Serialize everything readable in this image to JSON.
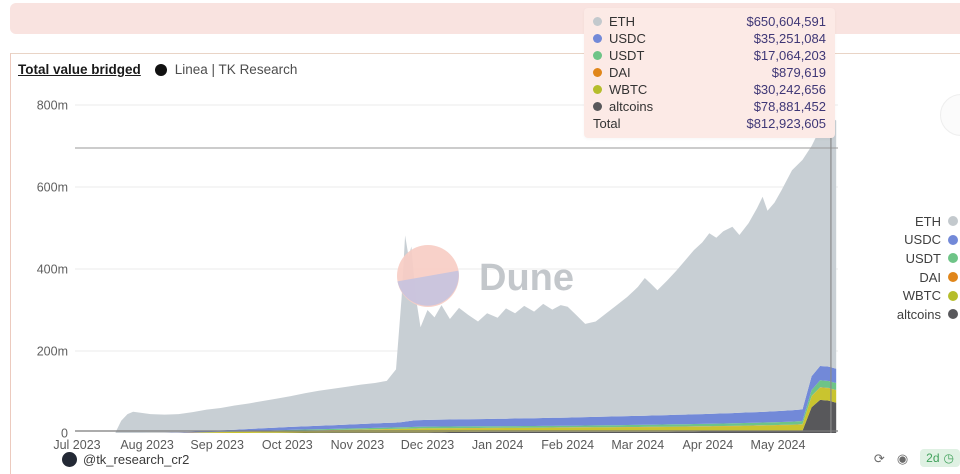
{
  "card": {
    "title": "Total value bridged",
    "subtitle": "Linea | TK Research"
  },
  "tooltip": {
    "rows": [
      {
        "label": "ETH",
        "value": "$650,604,591",
        "color": "#c3c9cd"
      },
      {
        "label": "USDC",
        "value": "$35,251,084",
        "color": "#7289d8"
      },
      {
        "label": "USDT",
        "value": "$17,064,203",
        "color": "#6ec487"
      },
      {
        "label": "DAI",
        "value": "$879,619",
        "color": "#e0861a"
      },
      {
        "label": "WBTC",
        "value": "$30,242,656",
        "color": "#b5bd2b"
      },
      {
        "label": "altcoins",
        "value": "$78,881,452",
        "color": "#58585b"
      }
    ],
    "total_label": "Total",
    "total_value": "$812,923,605"
  },
  "legend": {
    "items": [
      {
        "label": "ETH",
        "color": "#c3c9cd"
      },
      {
        "label": "USDC",
        "color": "#7289d8"
      },
      {
        "label": "USDT",
        "color": "#6ec487"
      },
      {
        "label": "DAI",
        "color": "#e0861a"
      },
      {
        "label": "WBTC",
        "color": "#b5bd2b"
      },
      {
        "label": "altcoins",
        "color": "#58585b"
      }
    ]
  },
  "watermark": {
    "label": "Dune"
  },
  "footer": {
    "handle": "@tk_research_cr2"
  },
  "actions": {
    "age_badge": "2d",
    "clock_glyph": "◷",
    "fork_glyph": "⟳",
    "embed_glyph": "◉"
  },
  "chart_data": {
    "type": "area",
    "stacked": true,
    "title": "Total value bridged (Linea | TK Research)",
    "x_tick_labels": [
      "Jul 2023",
      "Aug 2023",
      "Sep 2023",
      "Oct 2023",
      "Nov 2023",
      "Dec 2023",
      "Jan 2024",
      "Feb 2024",
      "Mar 2024",
      "Apr 2024",
      "May 2024"
    ],
    "y_tick_labels": [
      "0",
      "200m",
      "400m",
      "600m",
      "800m"
    ],
    "y_tick_values": [
      0,
      200,
      400,
      600,
      800
    ],
    "y_unit": "USD millions",
    "ylim": [
      0,
      830
    ],
    "legend_position": "right",
    "grid": "horizontal",
    "stack_order_bottom_up": [
      "altcoins",
      "WBTC",
      "DAI",
      "USDT",
      "USDC",
      "ETH"
    ],
    "colors": {
      "ETH": "#c8cfd4",
      "USDC": "#7289d8",
      "USDT": "#6ec487",
      "DAI": "#e0861a",
      "WBTC": "#c9c42f",
      "altcoins": "#58585b"
    },
    "x_months_since_jul_2023": [
      0.55,
      0.63,
      0.72,
      0.8,
      0.92,
      1.05,
      1.25,
      1.45,
      1.65,
      1.85,
      2.05,
      2.25,
      2.45,
      2.65,
      2.85,
      3.05,
      3.25,
      3.45,
      3.65,
      3.85,
      4.05,
      4.25,
      4.42,
      4.55,
      4.63,
      4.68,
      4.73,
      4.77,
      4.83,
      4.9,
      5.0,
      5.1,
      5.2,
      5.32,
      5.45,
      5.58,
      5.72,
      5.85,
      6.0,
      6.12,
      6.25,
      6.38,
      6.52,
      6.65,
      6.78,
      6.9,
      7.0,
      7.12,
      7.25,
      7.4,
      7.55,
      7.7,
      7.85,
      8.0,
      8.1,
      8.2,
      8.28,
      8.42,
      8.55,
      8.68,
      8.8,
      8.92,
      9.02,
      9.12,
      9.22,
      9.35,
      9.45,
      9.58,
      9.7,
      9.78,
      9.85,
      9.95,
      10.05,
      10.2,
      10.35,
      10.48,
      10.6,
      10.68,
      10.72,
      10.78,
      10.83
    ],
    "total_millions": [
      2,
      30,
      46,
      52,
      49,
      46,
      45,
      46,
      51,
      57,
      61,
      67,
      72,
      78,
      84,
      90,
      97,
      103,
      108,
      113,
      118,
      122,
      127,
      155,
      330,
      482,
      430,
      455,
      335,
      258,
      300,
      282,
      312,
      278,
      305,
      288,
      272,
      292,
      281,
      304,
      292,
      310,
      296,
      315,
      301,
      312,
      308,
      288,
      266,
      272,
      292,
      312,
      332,
      356,
      378,
      362,
      348,
      372,
      396,
      422,
      446,
      465,
      487,
      476,
      492,
      503,
      483,
      512,
      548,
      576,
      542,
      562,
      592,
      641,
      666,
      700,
      742,
      790,
      812,
      768,
      762
    ],
    "series_keyframes_millions": {
      "USDC": [
        [
          0.55,
          0
        ],
        [
          1.2,
          0
        ],
        [
          1.6,
          2
        ],
        [
          2.2,
          4
        ],
        [
          3.0,
          7
        ],
        [
          4.0,
          10
        ],
        [
          4.6,
          12
        ],
        [
          4.8,
          16
        ],
        [
          5.2,
          17
        ],
        [
          6.0,
          18
        ],
        [
          7.0,
          20
        ],
        [
          8.0,
          22
        ],
        [
          9.0,
          24
        ],
        [
          9.8,
          26
        ],
        [
          10.3,
          28
        ],
        [
          10.42,
          29
        ],
        [
          10.5,
          35
        ],
        [
          10.83,
          35
        ]
      ],
      "USDT": [
        [
          0.55,
          0
        ],
        [
          1.7,
          0
        ],
        [
          2.2,
          1
        ],
        [
          3.0,
          2
        ],
        [
          4.0,
          3
        ],
        [
          5.0,
          4
        ],
        [
          7.0,
          4
        ],
        [
          8.0,
          5
        ],
        [
          9.0,
          6
        ],
        [
          10.0,
          7
        ],
        [
          10.42,
          8
        ],
        [
          10.5,
          17
        ],
        [
          10.83,
          17
        ]
      ],
      "DAI": [
        [
          0.55,
          0
        ],
        [
          2.0,
          0.4
        ],
        [
          6.0,
          0.6
        ],
        [
          10.83,
          0.9
        ]
      ],
      "WBTC": [
        [
          0.55,
          0
        ],
        [
          1.4,
          0
        ],
        [
          2.0,
          2
        ],
        [
          3.0,
          4
        ],
        [
          4.0,
          6
        ],
        [
          4.7,
          8
        ],
        [
          5.0,
          9
        ],
        [
          6.0,
          9
        ],
        [
          7.0,
          10
        ],
        [
          8.0,
          11
        ],
        [
          9.0,
          12
        ],
        [
          10.0,
          14
        ],
        [
          10.42,
          15
        ],
        [
          10.5,
          30
        ],
        [
          10.83,
          30
        ]
      ],
      "altcoins": [
        [
          0.55,
          0
        ],
        [
          2.4,
          0
        ],
        [
          3.0,
          1
        ],
        [
          4.0,
          2
        ],
        [
          5.0,
          2
        ],
        [
          6.0,
          3
        ],
        [
          8.0,
          3
        ],
        [
          9.5,
          4
        ],
        [
          10.2,
          5
        ],
        [
          10.42,
          6
        ],
        [
          10.5,
          82
        ],
        [
          10.72,
          79
        ],
        [
          10.83,
          74
        ]
      ]
    },
    "hover": {
      "x_month": 10.755,
      "y_value_millions": 695
    }
  }
}
